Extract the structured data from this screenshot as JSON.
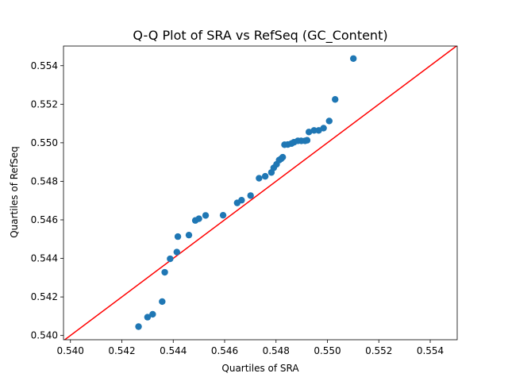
{
  "chart_data": {
    "type": "scatter",
    "title": "Q-Q Plot of SRA vs RefSeq (GC_Content)",
    "xlabel": "Quartiles of SRA",
    "ylabel": "Quartiles of RefSeq",
    "xlim": [
      0.53973,
      0.55505
    ],
    "ylim": [
      0.53978,
      0.55502
    ],
    "x_ticks": [
      "0.540",
      "0.542",
      "0.544",
      "0.546",
      "0.548",
      "0.550",
      "0.552",
      "0.554"
    ],
    "y_ticks": [
      "0.540",
      "0.542",
      "0.544",
      "0.546",
      "0.548",
      "0.550",
      "0.552",
      "0.554"
    ],
    "grid": false,
    "legend": "none",
    "marker_color": "#1f77b4",
    "reference_line": {
      "from": [
        0.53973,
        0.53973
      ],
      "to": [
        0.55505,
        0.55505
      ],
      "color": "#ff0000"
    },
    "points": [
      [
        0.54265,
        0.54046
      ],
      [
        0.543,
        0.54095
      ],
      [
        0.5432,
        0.5411
      ],
      [
        0.54357,
        0.54176
      ],
      [
        0.54367,
        0.54328
      ],
      [
        0.54388,
        0.54398
      ],
      [
        0.54414,
        0.54433
      ],
      [
        0.54418,
        0.54513
      ],
      [
        0.54461,
        0.54521
      ],
      [
        0.54486,
        0.54597
      ],
      [
        0.545,
        0.54606
      ],
      [
        0.54526,
        0.54623
      ],
      [
        0.54594,
        0.54624
      ],
      [
        0.54649,
        0.54688
      ],
      [
        0.54666,
        0.54702
      ],
      [
        0.54701,
        0.54726
      ],
      [
        0.54734,
        0.54816
      ],
      [
        0.54758,
        0.54826
      ],
      [
        0.54782,
        0.54846
      ],
      [
        0.54791,
        0.5487
      ],
      [
        0.54802,
        0.54888
      ],
      [
        0.54812,
        0.5491
      ],
      [
        0.5482,
        0.54917
      ],
      [
        0.54826,
        0.54925
      ],
      [
        0.54833,
        0.5499
      ],
      [
        0.54846,
        0.54991
      ],
      [
        0.5486,
        0.54996
      ],
      [
        0.5487,
        0.55003
      ],
      [
        0.54885,
        0.5501
      ],
      [
        0.54898,
        0.5501
      ],
      [
        0.54913,
        0.5501
      ],
      [
        0.54921,
        0.55013
      ],
      [
        0.54928,
        0.55056
      ],
      [
        0.54948,
        0.55064
      ],
      [
        0.54966,
        0.55064
      ],
      [
        0.54985,
        0.55076
      ],
      [
        0.55007,
        0.55113
      ],
      [
        0.5503,
        0.55225
      ],
      [
        0.55101,
        0.55437
      ]
    ]
  }
}
